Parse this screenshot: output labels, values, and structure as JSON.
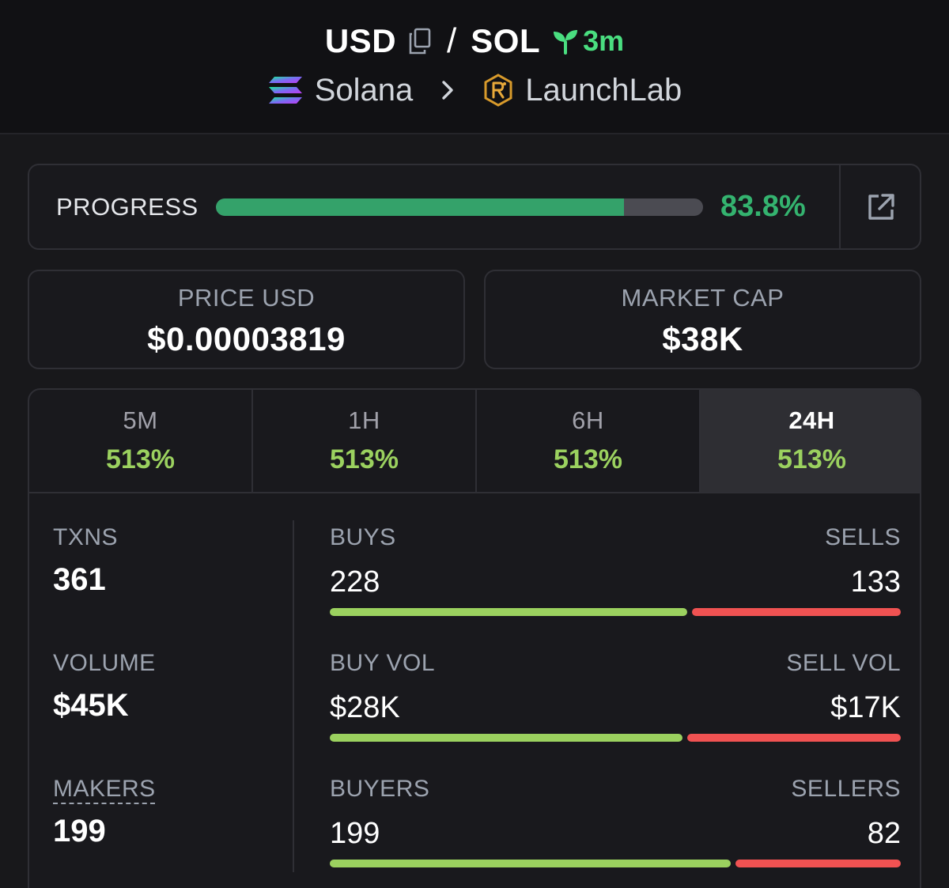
{
  "pair": {
    "base": "USD",
    "quote": "SOL",
    "separator": "/",
    "age": "3m"
  },
  "breadcrumb": {
    "chain": "Solana",
    "dex": "LaunchLab"
  },
  "progress": {
    "label": "PROGRESS",
    "value_text": "83.8%",
    "fraction": 0.838
  },
  "stats": {
    "price_label": "PRICE USD",
    "price_value": "$0.00003819",
    "mcap_label": "MARKET CAP",
    "mcap_value": "$38K"
  },
  "tabs": [
    {
      "label": "5M",
      "value": "513%",
      "active": false
    },
    {
      "label": "1H",
      "value": "513%",
      "active": false
    },
    {
      "label": "6H",
      "value": "513%",
      "active": false
    },
    {
      "label": "24H",
      "value": "513%",
      "active": true
    }
  ],
  "metrics": {
    "txns": {
      "label": "TXNS",
      "value": "361"
    },
    "volume": {
      "label": "VOLUME",
      "value": "$45K"
    },
    "makers": {
      "label": "MAKERS",
      "value": "199"
    }
  },
  "splits": {
    "txns": {
      "left_label": "BUYS",
      "right_label": "SELLS",
      "left_value": "228",
      "right_value": "133",
      "left_amount": 228,
      "right_amount": 133
    },
    "volume": {
      "left_label": "BUY VOL",
      "right_label": "SELL VOL",
      "left_value": "$28K",
      "right_value": "$17K",
      "left_amount": 28,
      "right_amount": 17
    },
    "makers": {
      "left_label": "BUYERS",
      "right_label": "SELLERS",
      "left_value": "199",
      "right_value": "82",
      "left_amount": 199,
      "right_amount": 82
    }
  },
  "colors": {
    "positive": "#9bd15f",
    "negative": "#f05252",
    "progress": "#34a26a",
    "age": "#4ade80"
  }
}
